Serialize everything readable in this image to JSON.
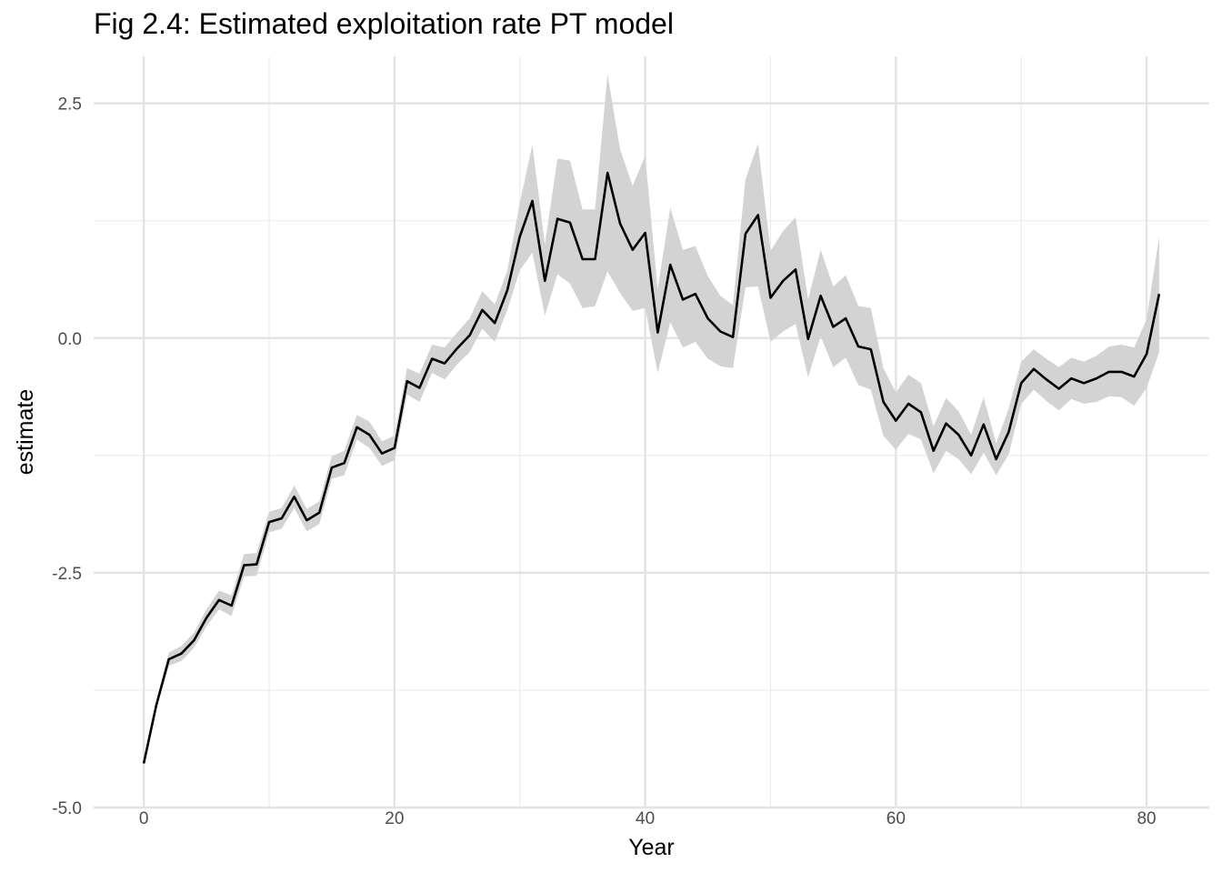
{
  "chart_data": {
    "type": "line",
    "title": "Fig 2.4: Estimated exploitation rate PT model",
    "xlabel": "Year",
    "ylabel": "estimate",
    "xlim": [
      -4,
      85
    ],
    "ylim": [
      -5.0,
      3.0
    ],
    "x_ticks": [
      0,
      20,
      40,
      60,
      80
    ],
    "x_tick_labels": [
      "0",
      "20",
      "40",
      "60",
      "80"
    ],
    "y_ticks": [
      -5.0,
      -2.5,
      0.0,
      2.5
    ],
    "y_tick_labels": [
      "-5.0",
      "-2.5",
      "0.0",
      "2.5"
    ],
    "grid": true,
    "legend": "none",
    "line_color": "#000000",
    "band_color": "#d3d3d3",
    "x": [
      0,
      1,
      2,
      3,
      4,
      5,
      6,
      7,
      8,
      9,
      10,
      11,
      12,
      13,
      14,
      15,
      16,
      17,
      18,
      19,
      20,
      21,
      22,
      23,
      24,
      25,
      26,
      27,
      28,
      29,
      30,
      31,
      32,
      33,
      34,
      35,
      36,
      37,
      38,
      39,
      40,
      41,
      42,
      43,
      44,
      45,
      46,
      47,
      48,
      49,
      50,
      51,
      52,
      53,
      54,
      55,
      56,
      57,
      58,
      59,
      60,
      61,
      62,
      63,
      64,
      65,
      66,
      67,
      68,
      69,
      70,
      71,
      72,
      73,
      74,
      75,
      76,
      77,
      78,
      79,
      80,
      81
    ],
    "series": [
      {
        "values": [
          -4.53,
          -3.91,
          -3.42,
          -3.36,
          -3.22,
          -2.98,
          -2.79,
          -2.85,
          -2.42,
          -2.41,
          -1.96,
          -1.92,
          -1.69,
          -1.94,
          -1.86,
          -1.38,
          -1.33,
          -0.95,
          -1.03,
          -1.23,
          -1.17,
          -0.46,
          -0.53,
          -0.22,
          -0.27,
          -0.11,
          0.03,
          0.3,
          0.16,
          0.51,
          1.08,
          1.46,
          0.61,
          1.27,
          1.23,
          0.84,
          0.84,
          1.76,
          1.22,
          0.94,
          1.12,
          0.06,
          0.78,
          0.41,
          0.47,
          0.21,
          0.07,
          0.01,
          1.11,
          1.31,
          0.43,
          0.61,
          0.73,
          -0.01,
          0.45,
          0.12,
          0.21,
          -0.09,
          -0.12,
          -0.68,
          -0.88,
          -0.7,
          -0.79,
          -1.2,
          -0.91,
          -1.03,
          -1.25,
          -0.92,
          -1.29,
          -1.0,
          -0.48,
          -0.33,
          -0.44,
          -0.54,
          -0.43,
          -0.48,
          -0.43,
          -0.36,
          -0.36,
          -0.41,
          -0.17,
          0.47
        ],
        "lower": [
          -4.53,
          -3.95,
          -3.49,
          -3.44,
          -3.3,
          -3.07,
          -2.89,
          -2.96,
          -2.54,
          -2.53,
          -2.07,
          -2.03,
          -1.81,
          -2.06,
          -1.98,
          -1.5,
          -1.46,
          -1.08,
          -1.17,
          -1.36,
          -1.3,
          -0.6,
          -0.68,
          -0.37,
          -0.44,
          -0.28,
          -0.15,
          0.1,
          -0.04,
          0.3,
          0.72,
          0.91,
          0.24,
          0.68,
          0.58,
          0.32,
          0.34,
          0.71,
          0.48,
          0.29,
          0.32,
          -0.37,
          0.17,
          -0.1,
          -0.04,
          -0.22,
          -0.3,
          -0.32,
          0.54,
          0.55,
          -0.04,
          0.07,
          0.15,
          -0.42,
          0.02,
          -0.31,
          -0.21,
          -0.5,
          -0.55,
          -1.04,
          -1.19,
          -1.02,
          -1.08,
          -1.44,
          -1.2,
          -1.29,
          -1.45,
          -1.22,
          -1.46,
          -1.24,
          -0.7,
          -0.55,
          -0.67,
          -0.77,
          -0.65,
          -0.7,
          -0.68,
          -0.62,
          -0.63,
          -0.72,
          -0.53,
          -0.15
        ],
        "upper": [
          -4.53,
          -3.87,
          -3.35,
          -3.28,
          -3.14,
          -2.89,
          -2.69,
          -2.74,
          -2.3,
          -2.29,
          -1.85,
          -1.81,
          -1.57,
          -1.82,
          -1.74,
          -1.26,
          -1.2,
          -0.82,
          -0.89,
          -1.1,
          -1.04,
          -0.32,
          -0.38,
          -0.07,
          -0.1,
          0.06,
          0.21,
          0.5,
          0.36,
          0.72,
          1.44,
          2.06,
          1.0,
          1.91,
          1.89,
          1.37,
          1.37,
          2.81,
          2.01,
          1.62,
          1.94,
          0.52,
          1.39,
          0.94,
          0.98,
          0.66,
          0.45,
          0.35,
          1.69,
          2.07,
          0.93,
          1.14,
          1.29,
          0.41,
          0.94,
          0.55,
          0.67,
          0.34,
          0.32,
          -0.32,
          -0.58,
          -0.39,
          -0.48,
          -0.94,
          -0.64,
          -0.78,
          -1.03,
          -0.63,
          -1.12,
          -0.75,
          -0.25,
          -0.12,
          -0.22,
          -0.31,
          -0.21,
          -0.25,
          -0.19,
          -0.09,
          -0.07,
          -0.1,
          0.2,
          1.08
        ]
      }
    ]
  }
}
